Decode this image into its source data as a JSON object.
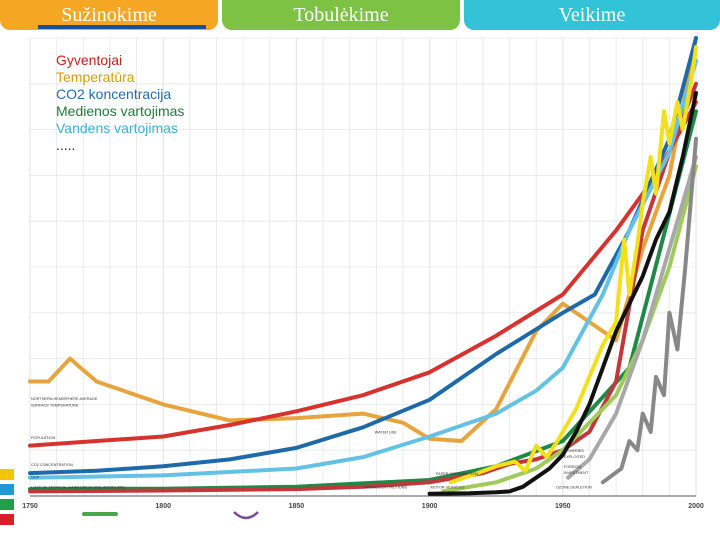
{
  "tabs": [
    {
      "label": "Sužinokime",
      "color": "#f5a623"
    },
    {
      "label": "Tobulėkime",
      "color": "#7dc242"
    },
    {
      "label": "Veikime",
      "color": "#33c3d6"
    }
  ],
  "legend": {
    "items": [
      {
        "label": "Gyventojai",
        "color": "#cc1f1f"
      },
      {
        "label": "Temperatūra",
        "color": "#d4a000"
      },
      {
        "label": "CO2 koncentracija",
        "color": "#1f6fb0"
      },
      {
        "label": "Medienos vartojimas",
        "color": "#1f7a3a"
      },
      {
        "label": "Vandens vartojimas",
        "color": "#3ab0d8"
      }
    ],
    "ellipsis": "....."
  },
  "side_colors": [
    "#f5c400",
    "#1c9ad6",
    "#1fa04a",
    "#d81f26"
  ],
  "chart_data": {
    "type": "line",
    "xlim": [
      1750,
      2000
    ],
    "ylim": [
      0,
      100
    ],
    "x_ticks": [
      1750,
      1800,
      1850,
      1900,
      1950,
      2000
    ],
    "grid": true,
    "annotations": [
      {
        "text": "NORTHERN HEMISPHERE AVERAGE",
        "x": 1750,
        "y": 21
      },
      {
        "text": "SURFACE TEMPERATURE",
        "x": 1750,
        "y": 19.5
      },
      {
        "text": "POPULATION",
        "x": 1750,
        "y": 12.5
      },
      {
        "text": "CO2 CONCENTRATION",
        "x": 1750,
        "y": 6.5
      },
      {
        "text": "GDP",
        "x": 1750,
        "y": 3.8
      },
      {
        "text": "LOSS OF TROPICAL RAINFOREST AND WOODLAND",
        "x": 1750,
        "y": 1.6
      },
      {
        "text": "WATER USE",
        "x": 1879,
        "y": 13.6
      },
      {
        "text": "SPECIES EXTINCTIONS",
        "x": 1875,
        "y": 1.6
      },
      {
        "text": "MOTOR VEHICLES",
        "x": 1900,
        "y": 1.6
      },
      {
        "text": "PAPER CONSUMPTION",
        "x": 1902,
        "y": 4.6
      },
      {
        "text": "FISHERIES",
        "x": 1950,
        "y": 9.6
      },
      {
        "text": "EXPLOITED",
        "x": 1950,
        "y": 8.3
      },
      {
        "text": "FOREIGN",
        "x": 1950,
        "y": 6.1
      },
      {
        "text": "INVESTMENT",
        "x": 1950,
        "y": 4.8
      },
      {
        "text": "OZONE DEPLETION",
        "x": 1947,
        "y": 1.6
      }
    ],
    "series": [
      {
        "color": "#e8a43c",
        "width": 4,
        "x": [
          1750,
          1757,
          1765,
          1775,
          1800,
          1825,
          1850,
          1875,
          1890,
          1900,
          1912,
          1925,
          1940,
          1950,
          1960,
          1970,
          1980,
          1990,
          2000
        ],
        "y": [
          25,
          25,
          30,
          25,
          20,
          16.5,
          17,
          18,
          16,
          12.5,
          12,
          19,
          36,
          42,
          38,
          34,
          54,
          70,
          100
        ]
      },
      {
        "color": "#d7322e",
        "width": 4,
        "x": [
          1750,
          1775,
          1800,
          1825,
          1850,
          1875,
          1900,
          1925,
          1950,
          1970,
          1985,
          2000
        ],
        "y": [
          11,
          12,
          13,
          15.5,
          18.5,
          22,
          27,
          35,
          44,
          58,
          70,
          86
        ]
      },
      {
        "color": "#1e6aa8",
        "width": 4,
        "x": [
          1750,
          1775,
          1800,
          1825,
          1850,
          1875,
          1900,
          1925,
          1950,
          1962,
          1975,
          1990,
          2000
        ],
        "y": [
          5,
          5.5,
          6.5,
          8,
          10.5,
          15,
          21,
          31,
          40,
          44,
          58,
          78,
          100
        ]
      },
      {
        "color": "#1f8a48",
        "width": 4,
        "x": [
          1750,
          1800,
          1850,
          1900,
          1925,
          1950,
          1975,
          2000
        ],
        "y": [
          1.5,
          1.6,
          2,
          3.5,
          6.5,
          12,
          28,
          84
        ]
      },
      {
        "color": "#c2373b",
        "width": 4,
        "x": [
          1750,
          1800,
          1850,
          1875,
          1900,
          1920,
          1930,
          1940,
          1950,
          1960,
          1970,
          1980,
          1990,
          2000
        ],
        "y": [
          1,
          1.2,
          1.5,
          2,
          3,
          5,
          7,
          8,
          10,
          14,
          25,
          58,
          75,
          90
        ]
      },
      {
        "color": "#63c2e3",
        "width": 4,
        "x": [
          1750,
          1800,
          1850,
          1875,
          1900,
          1925,
          1940,
          1950,
          1965,
          1975,
          1990,
          2000
        ],
        "y": [
          4,
          4.5,
          6,
          8.5,
          13,
          18,
          23,
          28,
          44,
          58,
          75,
          95
        ]
      },
      {
        "color": "#9fcb5a",
        "width": 4,
        "x": [
          1905,
          1925,
          1940,
          1950,
          1960,
          1970,
          1980,
          1990,
          2000
        ],
        "y": [
          1,
          3,
          6,
          10,
          16,
          22,
          34,
          50,
          72
        ]
      },
      {
        "color": "#f2e01c",
        "width": 4,
        "x": [
          1908,
          1913,
          1918,
          1925,
          1932,
          1936,
          1940,
          1944,
          1948,
          1952,
          1955,
          1960,
          1965,
          1970,
          1973,
          1975,
          1978,
          1980,
          1983,
          1985,
          1988,
          1990,
          1993,
          1995,
          1998,
          2000
        ],
        "y": [
          3,
          4,
          5,
          6.5,
          7.5,
          5.5,
          11,
          8.5,
          12,
          16,
          19,
          26,
          33,
          38,
          56,
          44,
          55,
          64,
          74,
          66,
          84,
          77,
          86,
          80,
          90,
          98
        ]
      },
      {
        "color": "#111111",
        "width": 4,
        "x": [
          1900,
          1915,
          1925,
          1930,
          1935,
          1940,
          1945,
          1950,
          1955,
          1960,
          1965,
          1970,
          1975,
          1980,
          1985,
          1990,
          1995,
          2000
        ],
        "y": [
          0.5,
          0.6,
          0.8,
          1,
          2,
          4,
          6,
          9,
          14,
          20,
          28,
          36,
          42,
          48,
          56,
          62,
          74,
          88
        ]
      },
      {
        "color": "#a8a8a8",
        "width": 4,
        "x": [
          1952,
          1960,
          1965,
          1970,
          1975,
          1980,
          1985,
          1990,
          1995,
          2000
        ],
        "y": [
          4,
          8,
          13,
          18,
          26,
          34,
          44,
          54,
          64,
          74
        ]
      },
      {
        "color": "#888888",
        "width": 4,
        "x": [
          1965,
          1972,
          1975,
          1978,
          1980,
          1983,
          1985,
          1988,
          1990,
          1993,
          1996,
          2000
        ],
        "y": [
          3,
          6,
          12,
          10,
          18,
          14,
          26,
          22,
          40,
          32,
          50,
          78
        ]
      }
    ]
  }
}
